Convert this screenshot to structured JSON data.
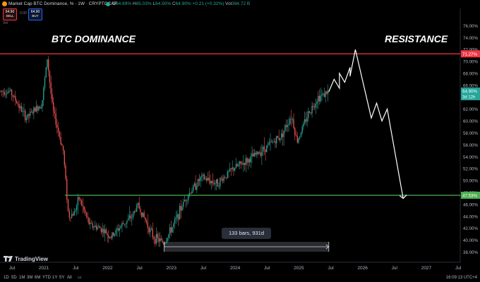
{
  "header": {
    "symbol": "Market Cap BTC Dominance, % · 1W · CRYPTOCAP",
    "ohlc": [
      {
        "label": "O",
        "value": "64.69%"
      },
      {
        "label": "H",
        "value": "65.03%"
      },
      {
        "label": "L",
        "value": "64.50%"
      },
      {
        "label": "C",
        "value": "64.90%"
      },
      {
        "label": "",
        "value": "+0.21 (+0.32%)"
      },
      {
        "label": "Vol",
        "value": "394.72 B"
      }
    ],
    "sell_price": "64.90",
    "sell_label": "SELL",
    "buy_price": "64.90",
    "buy_label": "BUY",
    "spread": "0.00",
    "sub_indicator": "Vol"
  },
  "annotations": {
    "left_title": "BTC DOMINANCE",
    "right_title": "RESISTANCE",
    "measure_label": "133 bars, 931d"
  },
  "branding": {
    "name": "TradingView"
  },
  "timeframes": [
    "1D",
    "5D",
    "1M",
    "3M",
    "6M",
    "YTD",
    "1Y",
    "5Y",
    "All"
  ],
  "clock": "16:09:13 UTC+4",
  "colors": {
    "resistance": "#f23645",
    "support": "#4caf50",
    "up": "#26a69a",
    "down": "#ef5350",
    "projection": "#ffffff"
  },
  "chart_data": {
    "type": "candlestick",
    "y_axis": {
      "scale": "linear",
      "ylim": [
        37.5,
        77.5
      ],
      "ticks": [
        "38.00%",
        "40.00%",
        "42.00%",
        "44.00%",
        "46.00%",
        "48.00%",
        "50.00%",
        "52.00%",
        "54.00%",
        "56.00%",
        "58.00%",
        "60.00%",
        "62.00%",
        "64.00%",
        "66.00%",
        "68.00%",
        "70.00%",
        "72.00%",
        "74.00%",
        "76.00%"
      ]
    },
    "x_axis": {
      "ticks": [
        "Jul",
        "2021",
        "Jul",
        "2022",
        "Jul",
        "2023",
        "Jul",
        "2024",
        "Jul",
        "2025",
        "Jul",
        "2026",
        "Jul",
        "2027",
        "Jul"
      ]
    },
    "grid": false,
    "resistance_level": {
      "value": 71.27,
      "label": "71.27%"
    },
    "support_level": {
      "value": 47.53,
      "label": "47.53%"
    },
    "last_price": {
      "value": 64.9,
      "label": "64.90%",
      "countdown": "3d 12h"
    },
    "trend_anchors": [
      {
        "date": "2020-06",
        "value": 65.0
      },
      {
        "date": "2020-09",
        "value": 60.5
      },
      {
        "date": "2020-12",
        "value": 63.0
      },
      {
        "date": "2021-01",
        "value": 70.5
      },
      {
        "date": "2021-02",
        "value": 62.0
      },
      {
        "date": "2021-04",
        "value": 55.0
      },
      {
        "date": "2021-05",
        "value": 44.0
      },
      {
        "date": "2021-06",
        "value": 44.5
      },
      {
        "date": "2021-07",
        "value": 47.0
      },
      {
        "date": "2021-09",
        "value": 42.5
      },
      {
        "date": "2021-11",
        "value": 42.0
      },
      {
        "date": "2022-01",
        "value": 40.5
      },
      {
        "date": "2022-03",
        "value": 42.5
      },
      {
        "date": "2022-05",
        "value": 44.0
      },
      {
        "date": "2022-06",
        "value": 46.0
      },
      {
        "date": "2022-09",
        "value": 40.5
      },
      {
        "date": "2022-11",
        "value": 39.5
      },
      {
        "date": "2023-01",
        "value": 43.0
      },
      {
        "date": "2023-03",
        "value": 47.0
      },
      {
        "date": "2023-06",
        "value": 50.5
      },
      {
        "date": "2023-09",
        "value": 49.5
      },
      {
        "date": "2023-12",
        "value": 52.0
      },
      {
        "date": "2024-03",
        "value": 53.5
      },
      {
        "date": "2024-06",
        "value": 55.5
      },
      {
        "date": "2024-09",
        "value": 57.5
      },
      {
        "date": "2024-11",
        "value": 61.0
      },
      {
        "date": "2024-12",
        "value": 56.5
      },
      {
        "date": "2025-02",
        "value": 61.0
      },
      {
        "date": "2025-04",
        "value": 64.0
      },
      {
        "date": "2025-06",
        "value": 64.9
      }
    ],
    "projection_path": [
      {
        "date": "2025-06",
        "value": 64.9
      },
      {
        "date": "2025-07",
        "value": 67.0
      },
      {
        "date": "2025-08",
        "value": 65.5
      },
      {
        "date": "2025-08",
        "value": 68.0
      },
      {
        "date": "2025-09",
        "value": 66.5
      },
      {
        "date": "2025-10",
        "value": 69.0
      },
      {
        "date": "2025-10",
        "value": 67.5
      },
      {
        "date": "2025-11",
        "value": 72.0
      },
      {
        "date": "2026-02",
        "value": 60.5
      },
      {
        "date": "2026-03",
        "value": 63.0
      },
      {
        "date": "2026-04",
        "value": 60.0
      },
      {
        "date": "2026-05",
        "value": 62.0
      },
      {
        "date": "2026-08",
        "value": 47.0
      }
    ],
    "measurement": {
      "from": "2022-11",
      "to": "2025-06",
      "label": "133 bars, 931d"
    }
  }
}
